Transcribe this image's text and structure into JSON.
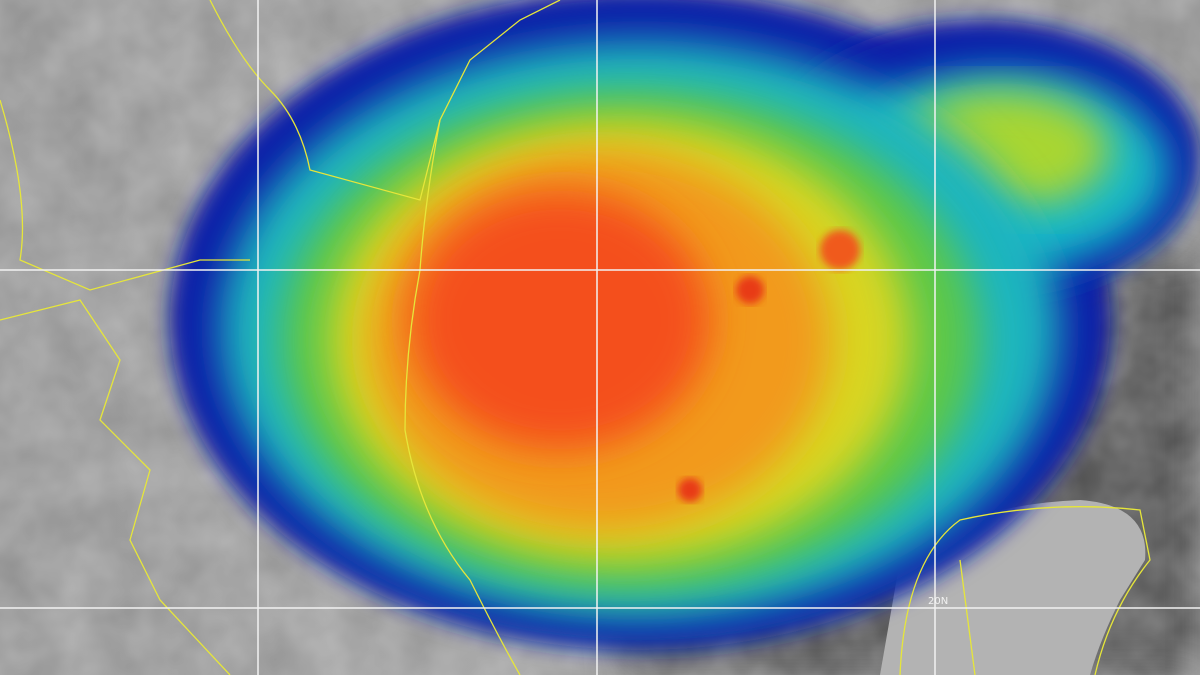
{
  "map": {
    "grid_label": "20N"
  }
}
